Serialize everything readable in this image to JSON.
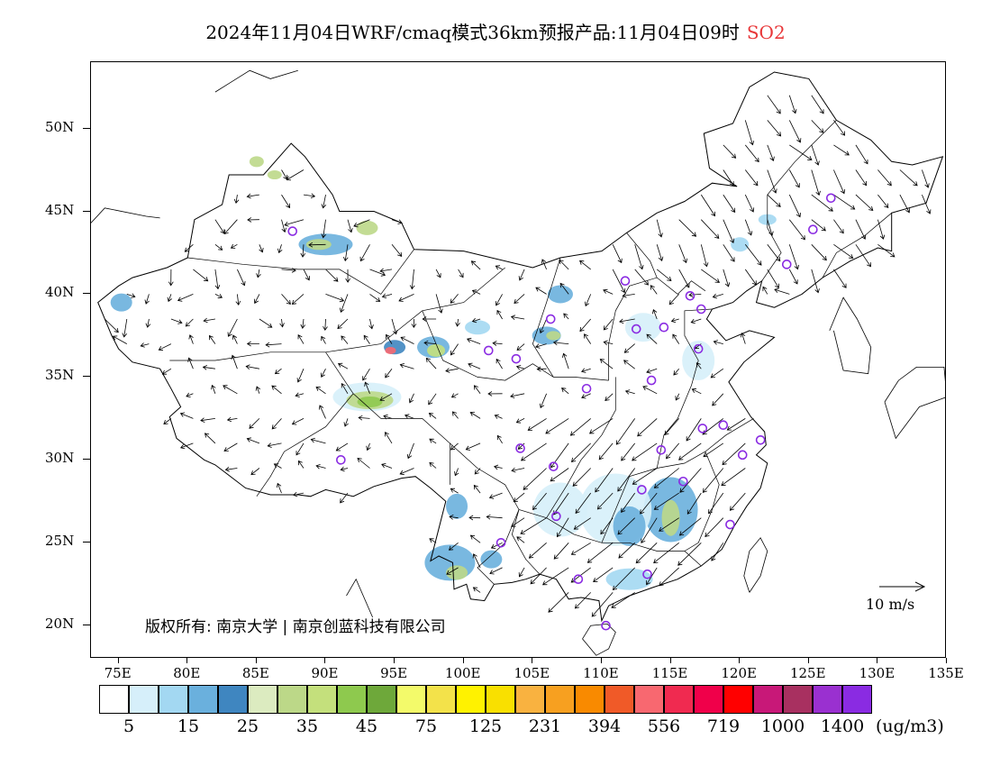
{
  "title": {
    "main": "2024年11月04日WRF/cmaq模式36km预报产品:11月04日09时",
    "species": "SO2",
    "species_color": "#e8383a"
  },
  "map": {
    "lon_range": [
      73,
      135
    ],
    "lat_range": [
      18,
      54
    ],
    "lat_ticks": [
      {
        "value": 20,
        "label": "20N"
      },
      {
        "value": 25,
        "label": "25N"
      },
      {
        "value": 30,
        "label": "30N"
      },
      {
        "value": 35,
        "label": "35N"
      },
      {
        "value": 40,
        "label": "40N"
      },
      {
        "value": 45,
        "label": "45N"
      },
      {
        "value": 50,
        "label": "50N"
      }
    ],
    "lon_ticks": [
      {
        "value": 75,
        "label": "75E"
      },
      {
        "value": 80,
        "label": "80E"
      },
      {
        "value": 85,
        "label": "85E"
      },
      {
        "value": 90,
        "label": "90E"
      },
      {
        "value": 95,
        "label": "95E"
      },
      {
        "value": 100,
        "label": "100E"
      },
      {
        "value": 105,
        "label": "105E"
      },
      {
        "value": 110,
        "label": "110E"
      },
      {
        "value": 115,
        "label": "115E"
      },
      {
        "value": 120,
        "label": "120E"
      },
      {
        "value": 125,
        "label": "125E"
      },
      {
        "value": 130,
        "label": "130E"
      },
      {
        "value": 135,
        "label": "135E"
      }
    ],
    "boundary_color": "#000000",
    "marker_color": "#8a2be2",
    "city_markers": [
      [
        87.6,
        43.8
      ],
      [
        91.1,
        30.0
      ],
      [
        101.8,
        36.6
      ],
      [
        103.8,
        36.1
      ],
      [
        106.3,
        38.5
      ],
      [
        111.7,
        40.8
      ],
      [
        112.5,
        37.9
      ],
      [
        114.5,
        38.0
      ],
      [
        116.4,
        39.9
      ],
      [
        117.2,
        39.1
      ],
      [
        117.0,
        36.7
      ],
      [
        113.6,
        34.8
      ],
      [
        108.9,
        34.3
      ],
      [
        104.1,
        30.7
      ],
      [
        106.5,
        29.6
      ],
      [
        106.7,
        26.6
      ],
      [
        102.7,
        25.0
      ],
      [
        108.3,
        22.8
      ],
      [
        113.3,
        23.1
      ],
      [
        110.3,
        20.0
      ],
      [
        112.9,
        28.2
      ],
      [
        114.3,
        30.6
      ],
      [
        115.9,
        28.7
      ],
      [
        117.3,
        31.9
      ],
      [
        118.8,
        32.1
      ],
      [
        120.2,
        30.3
      ],
      [
        121.5,
        31.2
      ],
      [
        119.3,
        26.1
      ],
      [
        123.4,
        41.8
      ],
      [
        125.3,
        43.9
      ],
      [
        126.6,
        45.8
      ]
    ],
    "wind_reference": {
      "label": "10 m/s"
    }
  },
  "copyright": "版权所有: 南京大学 | 南京创蓝科技有限公司",
  "legend": {
    "colors": [
      "#ffffff",
      "#d6effa",
      "#a3d8f2",
      "#6ab0dd",
      "#3f86c0",
      "#dcebc0",
      "#bcd888",
      "#c4e07c",
      "#8ec94e",
      "#6ea83a",
      "#f3fa6a",
      "#f3e24a",
      "#fff200",
      "#f9e000",
      "#f9b240",
      "#f7a020",
      "#f98a00",
      "#f05a28",
      "#f86870",
      "#f02a50",
      "#f0004a",
      "#ff0000",
      "#c81878",
      "#a83060",
      "#9a30d0",
      "#8a2be2"
    ],
    "labels": [
      {
        "index": 1,
        "text": "5"
      },
      {
        "index": 3,
        "text": "15"
      },
      {
        "index": 5,
        "text": "25"
      },
      {
        "index": 7,
        "text": "35"
      },
      {
        "index": 9,
        "text": "45"
      },
      {
        "index": 11,
        "text": "75"
      },
      {
        "index": 13,
        "text": "125"
      },
      {
        "index": 15,
        "text": "231"
      },
      {
        "index": 17,
        "text": "394"
      },
      {
        "index": 19,
        "text": "556"
      },
      {
        "index": 21,
        "text": "719"
      },
      {
        "index": 23,
        "text": "1000"
      },
      {
        "index": 25,
        "text": "1400"
      }
    ],
    "unit": "(ug/m3)"
  }
}
